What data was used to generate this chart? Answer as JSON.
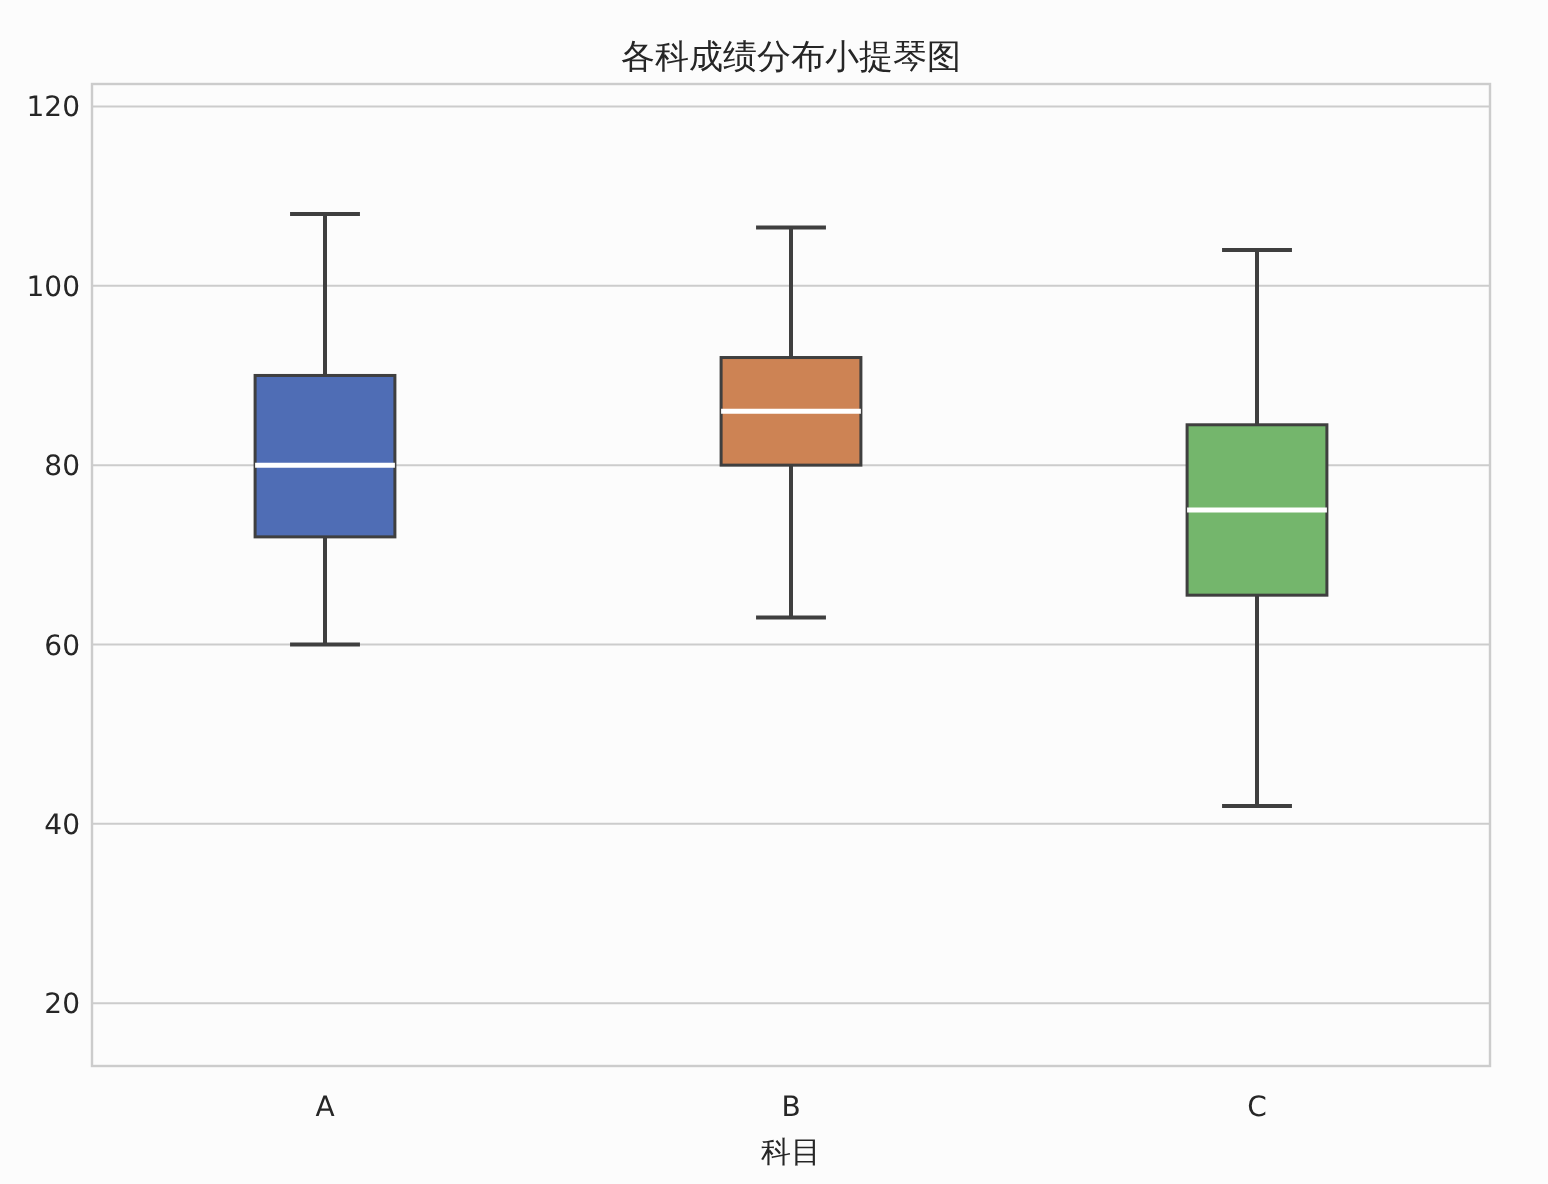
{
  "chart_data": {
    "type": "box",
    "title": "各科成绩分布小提琴图",
    "xlabel": "科目",
    "categories": [
      "A",
      "B",
      "C"
    ],
    "colors": [
      "#4f6db5",
      "#cd8354",
      "#74b66c"
    ],
    "boxes": [
      {
        "low": 60,
        "q1": 72,
        "median": 80,
        "q3": 90,
        "high": 108
      },
      {
        "low": 63,
        "q1": 80,
        "median": 86,
        "q3": 92,
        "high": 106.5
      },
      {
        "low": 42,
        "q1": 65.5,
        "median": 75,
        "q3": 84.5,
        "high": 104
      }
    ],
    "ylim": [
      13,
      122.5
    ],
    "yticks": [
      20,
      40,
      60,
      80,
      100,
      120
    ],
    "grid": "y"
  }
}
